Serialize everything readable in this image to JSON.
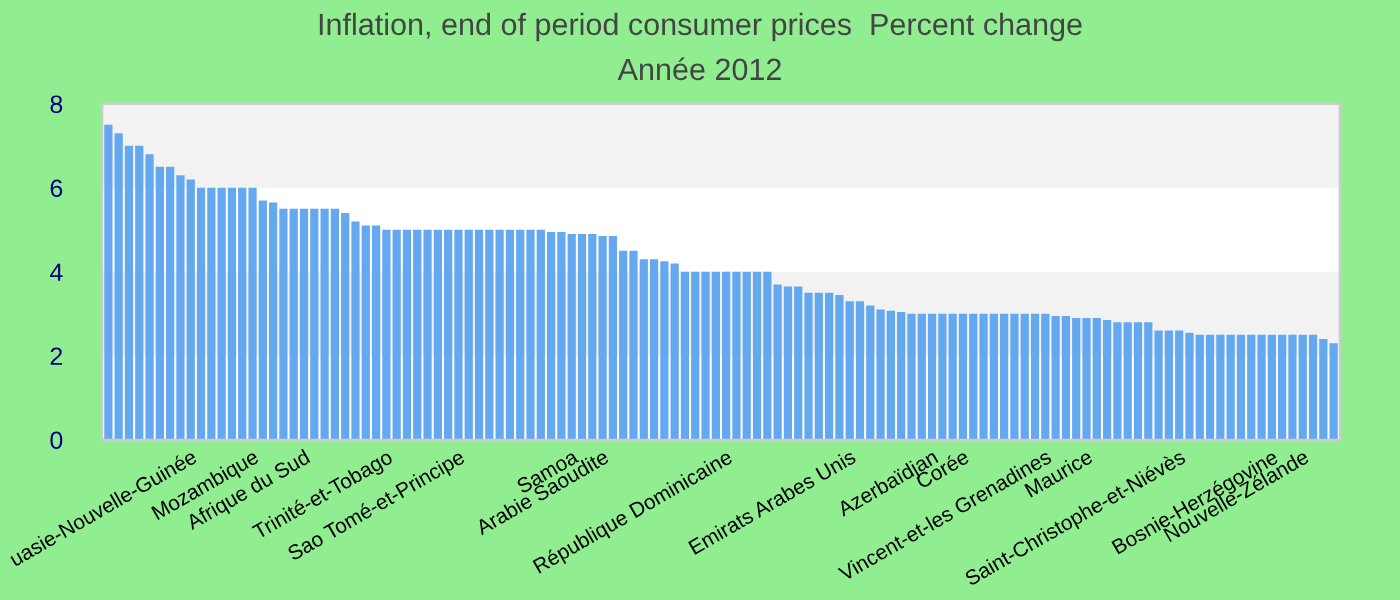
{
  "chart_data": {
    "type": "bar",
    "title": "Inflation, end of period consumer prices  Percent change",
    "subtitle": "Année 2012",
    "categories": [
      null,
      null,
      null,
      null,
      null,
      null,
      null,
      null,
      "uasie-Nouvelle-Guinée",
      null,
      null,
      null,
      null,
      null,
      "Mozambique",
      null,
      null,
      null,
      null,
      "Afrique du Sud",
      null,
      null,
      null,
      null,
      null,
      null,
      null,
      "Trinité-et-Tobago",
      null,
      null,
      null,
      null,
      null,
      null,
      "Sao Tomé-et-Principe",
      null,
      null,
      null,
      null,
      null,
      null,
      null,
      null,
      null,
      null,
      "Samoa",
      null,
      null,
      "Arabie Saoudite",
      null,
      null,
      null,
      null,
      null,
      null,
      null,
      null,
      null,
      null,
      null,
      "République Dominicaine",
      null,
      null,
      null,
      null,
      null,
      null,
      null,
      null,
      null,
      null,
      null,
      "Emirats Arabes Unis",
      null,
      null,
      null,
      null,
      null,
      null,
      null,
      "Azerbaïdjan",
      null,
      null,
      "Corée",
      null,
      null,
      null,
      null,
      null,
      null,
      null,
      "Vincent-et-les Grenadines",
      null,
      null,
      null,
      "Maurice",
      null,
      null,
      null,
      null,
      null,
      null,
      null,
      null,
      "Saint-Christophe-et-Niévès",
      null,
      null,
      null,
      null,
      null,
      null,
      null,
      null,
      "Bosnie-Herzégovine",
      null,
      null,
      "Nouvelle-Zélande",
      null,
      null,
      null
    ],
    "values": [
      7.5,
      7.3,
      7.0,
      7.0,
      6.8,
      6.5,
      6.5,
      6.3,
      6.2,
      6.0,
      6.0,
      6.0,
      6.0,
      6.0,
      6.0,
      5.7,
      5.65,
      5.5,
      5.5,
      5.5,
      5.5,
      5.5,
      5.5,
      5.4,
      5.2,
      5.1,
      5.1,
      5.0,
      5.0,
      5.0,
      5.0,
      5.0,
      5.0,
      5.0,
      5.0,
      5.0,
      5.0,
      5.0,
      5.0,
      5.0,
      5.0,
      5.0,
      5.0,
      4.95,
      4.95,
      4.9,
      4.9,
      4.9,
      4.85,
      4.85,
      4.5,
      4.5,
      4.3,
      4.3,
      4.25,
      4.2,
      4.0,
      4.0,
      4.0,
      4.0,
      4.0,
      4.0,
      4.0,
      4.0,
      4.0,
      3.7,
      3.65,
      3.65,
      3.5,
      3.5,
      3.5,
      3.45,
      3.3,
      3.3,
      3.2,
      3.1,
      3.07,
      3.04,
      3.0,
      3.0,
      3.0,
      3.0,
      3.0,
      3.0,
      3.0,
      3.0,
      3.0,
      3.0,
      3.0,
      3.0,
      3.0,
      3.0,
      2.95,
      2.95,
      2.9,
      2.9,
      2.9,
      2.85,
      2.8,
      2.8,
      2.8,
      2.8,
      2.6,
      2.6,
      2.6,
      2.55,
      2.5,
      2.5,
      2.5,
      2.5,
      2.5,
      2.5,
      2.5,
      2.5,
      2.5,
      2.5,
      2.5,
      2.5,
      2.4,
      2.3
    ],
    "color": "#64a8f0",
    "ylim": [
      0,
      8
    ],
    "yticks": [
      0,
      2,
      4,
      6,
      8
    ],
    "grid": false,
    "bands": [
      {
        "axis": "y",
        "from": 2,
        "to": 4,
        "color": "#f2f2f2"
      },
      {
        "axis": "y",
        "from": 6,
        "to": 8,
        "color": "#f2f2f2"
      }
    ]
  }
}
